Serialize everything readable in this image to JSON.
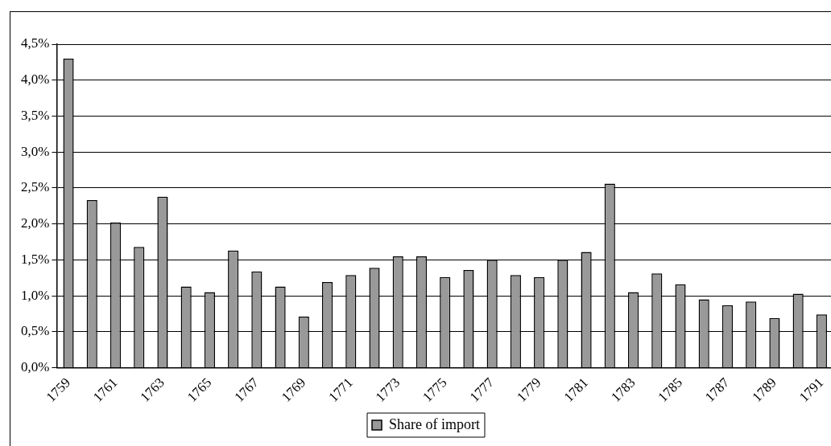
{
  "chart_data": {
    "type": "bar",
    "categories": [
      "1759",
      null,
      "1761",
      null,
      "1763",
      null,
      "1765",
      null,
      "1767",
      null,
      "1769",
      null,
      "1771",
      null,
      "1773",
      null,
      "1775",
      null,
      "1777",
      null,
      "1779",
      null,
      "1781",
      null,
      "1783",
      null,
      "1785",
      null,
      "1787",
      null,
      "1789",
      null,
      "1791"
    ],
    "series": [
      {
        "name": "Share of import",
        "color": "#999999",
        "values": [
          4.3,
          2.33,
          2.02,
          1.68,
          2.38,
          1.13,
          1.05,
          1.63,
          1.34,
          1.13,
          0.71,
          1.19,
          1.29,
          1.39,
          1.55,
          1.55,
          1.26,
          1.36,
          1.5,
          1.29,
          1.26,
          1.5,
          1.61,
          2.56,
          1.05,
          1.31,
          1.16,
          0.95,
          0.87,
          0.92,
          0.69,
          1.03,
          0.74
        ]
      }
    ],
    "ylim": [
      0,
      4.5
    ],
    "yticks": [
      {
        "value": 0,
        "label": "0,0%"
      },
      {
        "value": 0.5,
        "label": "0,5%"
      },
      {
        "value": 1,
        "label": "1,0%"
      },
      {
        "value": 1.5,
        "label": "1,5%"
      },
      {
        "value": 2,
        "label": "2,0%"
      },
      {
        "value": 2.5,
        "label": "2,5%"
      },
      {
        "value": 3,
        "label": "3,0%"
      },
      {
        "value": 3.5,
        "label": "3,5%"
      },
      {
        "value": 4,
        "label": "4,0%"
      },
      {
        "value": 4.5,
        "label": "4,5%"
      }
    ],
    "grid": "y",
    "legend": "bottom"
  }
}
